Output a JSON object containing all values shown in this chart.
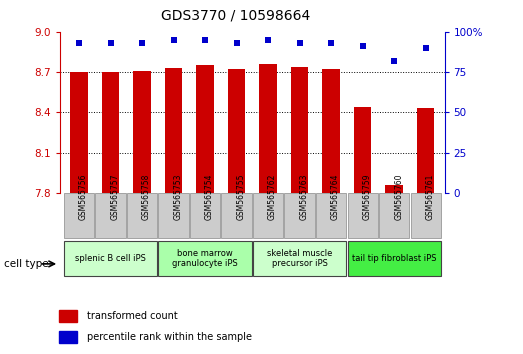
{
  "title": "GDS3770 / 10598664",
  "samples": [
    "GSM565756",
    "GSM565757",
    "GSM565758",
    "GSM565753",
    "GSM565754",
    "GSM565755",
    "GSM565762",
    "GSM565763",
    "GSM565764",
    "GSM565759",
    "GSM565760",
    "GSM565761"
  ],
  "bar_values": [
    8.7,
    8.7,
    8.71,
    8.73,
    8.75,
    8.72,
    8.76,
    8.74,
    8.72,
    8.44,
    7.86,
    8.43
  ],
  "dot_values": [
    93,
    93,
    93,
    95,
    95,
    93,
    95,
    93,
    93,
    91,
    82,
    90
  ],
  "ylim_left": [
    7.8,
    9.0
  ],
  "ylim_right": [
    0,
    100
  ],
  "yticks_left": [
    7.8,
    8.1,
    8.4,
    8.7,
    9.0
  ],
  "yticks_right": [
    0,
    25,
    50,
    75,
    100
  ],
  "bar_color": "#cc0000",
  "dot_color": "#0000cc",
  "grid_color": "#000000",
  "cell_groups": [
    {
      "label": "splenic B cell iPS",
      "start": 0,
      "end": 3,
      "color": "#ccffcc"
    },
    {
      "label": "bone marrow\ngranulocyte iPS",
      "start": 3,
      "end": 6,
      "color": "#aaffaa"
    },
    {
      "label": "skeletal muscle\nprecursor iPS",
      "start": 6,
      "end": 9,
      "color": "#ccffcc"
    },
    {
      "label": "tail tip fibroblast iPS",
      "start": 9,
      "end": 12,
      "color": "#44ee44"
    }
  ],
  "cell_type_label": "cell type",
  "legend_bar_label": "transformed count",
  "legend_dot_label": "percentile rank within the sample",
  "bar_color_legend": "#cc0000",
  "dot_color_legend": "#0000cc",
  "title_fontsize": 10,
  "tick_fontsize": 7.5,
  "bar_width": 0.55,
  "base_value": 7.8,
  "sample_box_color": "#cccccc",
  "left_tick_color": "#cc0000",
  "right_tick_color": "#0000cc"
}
